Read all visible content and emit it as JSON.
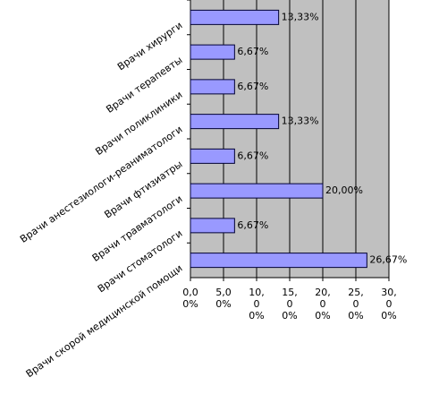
{
  "chart_data": {
    "type": "bar",
    "orientation": "horizontal",
    "categories": [
      "Врачи хирурги",
      "Врачи терапевты",
      "Врачи поликлиники",
      "Врачи анестезиологи-реаниматологи",
      "Врачи фтизиатры",
      "Врачи травматологи",
      "Врачи стоматологи",
      "Врачи скорой медицинской помощи"
    ],
    "values": [
      13.33,
      6.67,
      6.67,
      13.33,
      6.67,
      20.0,
      6.67,
      26.67
    ],
    "value_labels": [
      "13,33%",
      "6,67%",
      "6,67%",
      "13,33%",
      "6,67%",
      "20,00%",
      "6,67%",
      "26,67%"
    ],
    "color": "#9999ff",
    "xlim": [
      0,
      30
    ],
    "xticks": [
      {
        "value": 0,
        "label": "0,00%"
      },
      {
        "value": 5,
        "label": "5,00%"
      },
      {
        "value": 10,
        "label": "10,00%"
      },
      {
        "value": 15,
        "label": "15,00%"
      },
      {
        "value": 20,
        "label": "20,00%"
      },
      {
        "value": 25,
        "label": "25,00%"
      },
      {
        "value": 30,
        "label": "30,00%"
      }
    ],
    "grid": true
  }
}
